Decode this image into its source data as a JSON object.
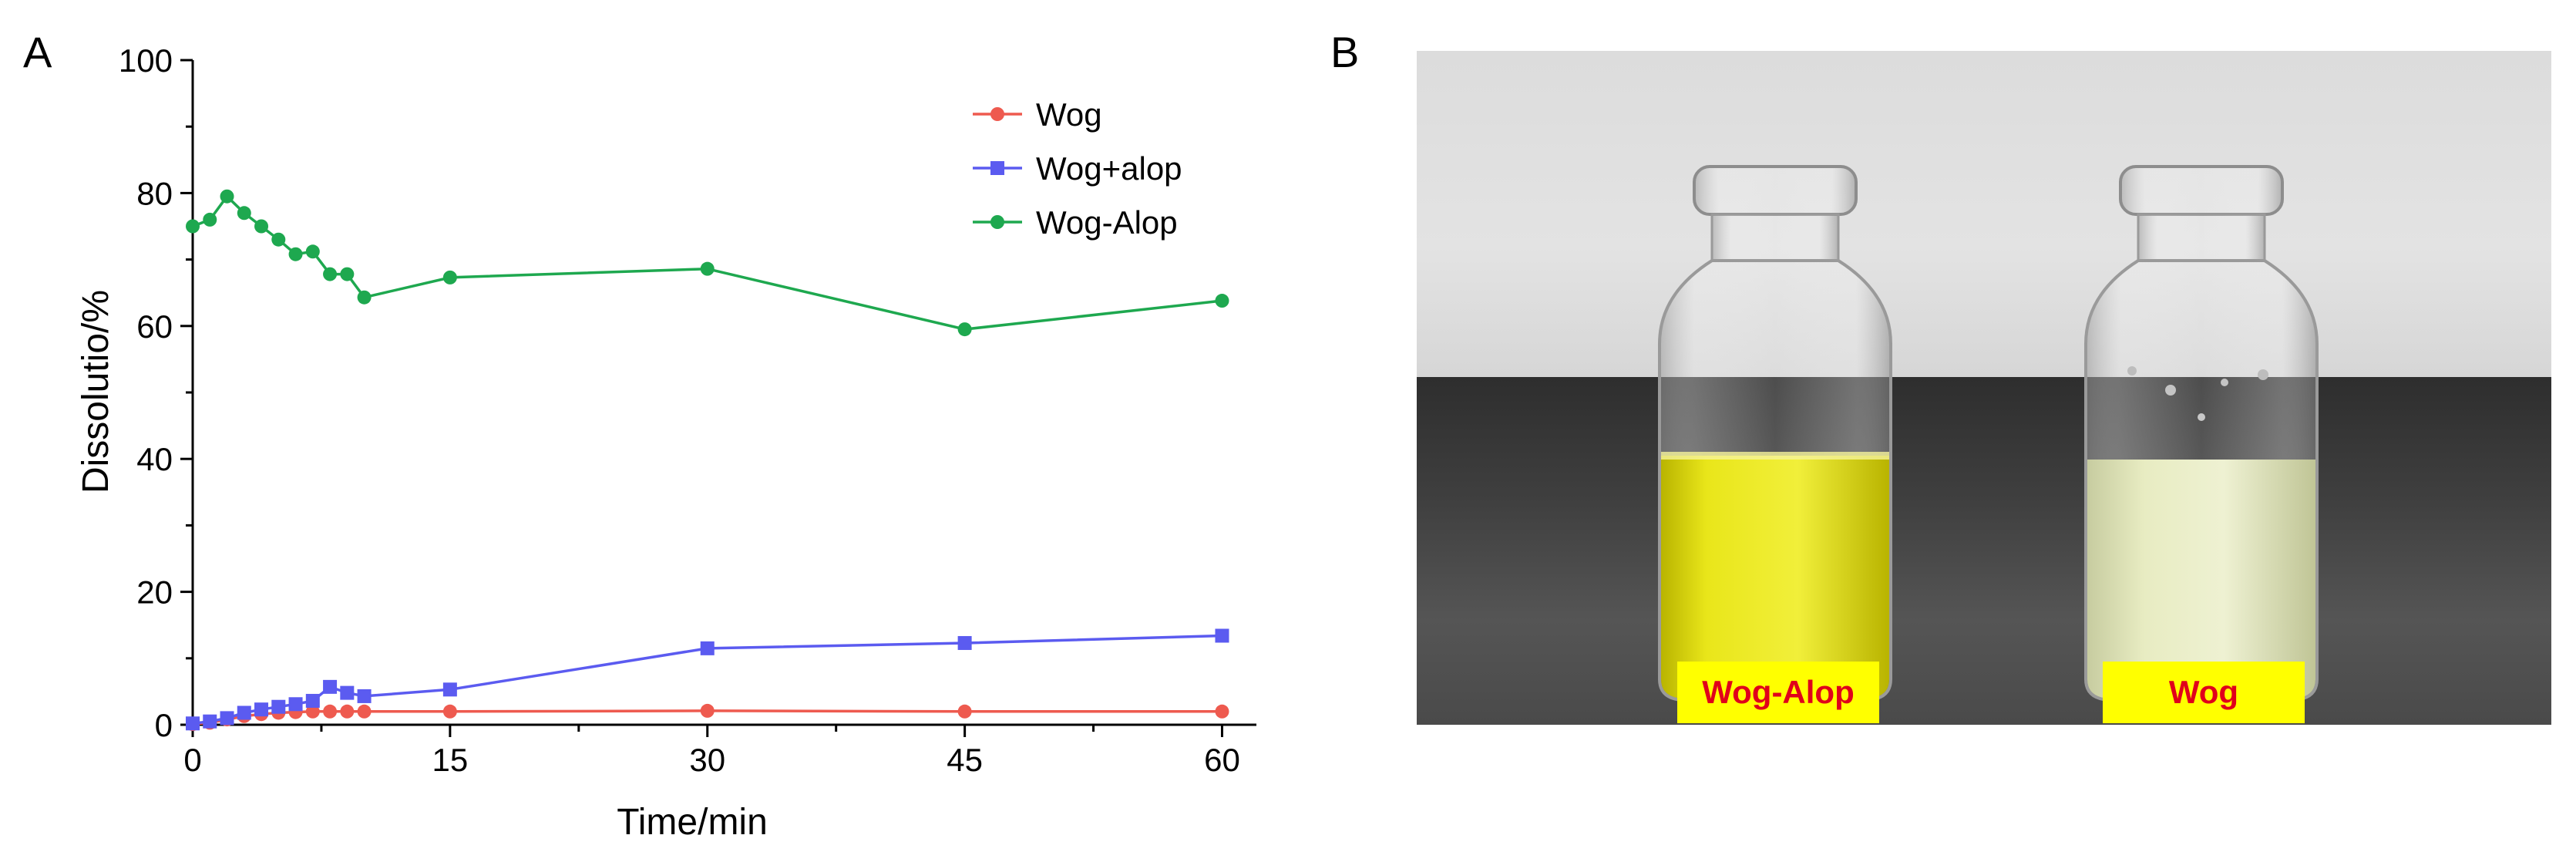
{
  "panels": {
    "a_letter": "A",
    "b_letter": "B"
  },
  "chart_data": {
    "type": "line",
    "xlabel": "Time/min",
    "ylabel": "Dissolutio/%",
    "xlim": [
      0,
      62
    ],
    "ylim": [
      0,
      100
    ],
    "xticks": [
      0,
      15,
      30,
      45,
      60
    ],
    "xtick_labels": [
      "0",
      "15",
      "30",
      "45",
      "60"
    ],
    "yticks": [
      0,
      20,
      40,
      60,
      80,
      100
    ],
    "ytick_labels": [
      "0",
      "20",
      "40",
      "60",
      "80",
      "100"
    ],
    "grid": false,
    "legend_position": "top-right",
    "series": [
      {
        "name": "Wog",
        "color": "#ee5a4f",
        "marker": "circle",
        "x": [
          0,
          1,
          2,
          3,
          4,
          5,
          6,
          7,
          8,
          9,
          10,
          15,
          30,
          45,
          60
        ],
        "y": [
          0.1,
          0.3,
          0.8,
          1.3,
          1.6,
          1.8,
          1.9,
          2.0,
          2.0,
          2.0,
          2.0,
          2.0,
          2.1,
          2.0,
          2.0
        ]
      },
      {
        "name": "Wog+alop",
        "color": "#5b5bf0",
        "marker": "square",
        "x": [
          0,
          1,
          2,
          3,
          4,
          5,
          6,
          7,
          8,
          9,
          10,
          15,
          30,
          45,
          60
        ],
        "y": [
          0.2,
          0.5,
          1.0,
          1.8,
          2.3,
          2.7,
          3.1,
          3.6,
          5.7,
          4.8,
          4.3,
          5.3,
          11.5,
          12.3,
          13.4
        ]
      },
      {
        "name": "Wog-Alop",
        "color": "#1ea84f",
        "marker": "circle",
        "x": [
          0,
          1,
          2,
          3,
          4,
          5,
          6,
          7,
          8,
          9,
          10,
          15,
          30,
          45,
          60
        ],
        "y": [
          75.0,
          76.0,
          79.5,
          77.0,
          75.0,
          73.0,
          70.8,
          71.2,
          67.8,
          67.8,
          64.3,
          67.3,
          68.6,
          59.5,
          63.8
        ]
      }
    ]
  },
  "photo": {
    "label_left": "Wog-Alop",
    "label_right": "Wog",
    "label_bg": "#ffff00",
    "label_color": "#e0001b",
    "liquid_left": "#e9e61a",
    "liquid_right": "#e8ecc2"
  }
}
